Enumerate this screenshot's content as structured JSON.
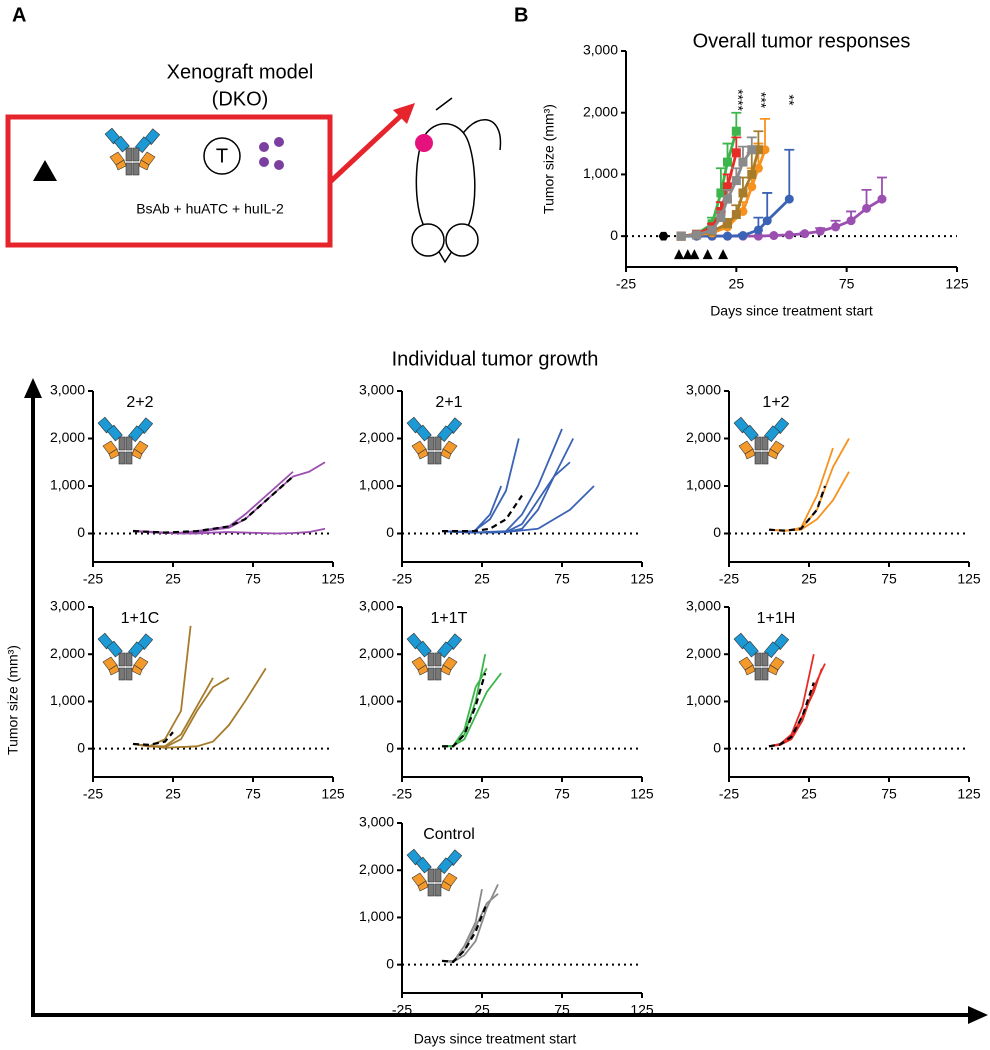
{
  "panel_labels": [
    "A",
    "B"
  ],
  "panel_a": {
    "title": "Xenograft model",
    "subtitle": "(DKO)",
    "cell_label": "T",
    "treatment": "BsAb + huATC + huIL-2"
  },
  "individual": {
    "title": "Individual tumor growth",
    "ylabel": "Tumor size (mm³)",
    "xlabel": "Days since treatment start"
  },
  "chart_data": [
    {
      "type": "line",
      "title": "Overall tumor responses",
      "xlabel": "Days since treatment start",
      "ylabel": "Tumor size (mm³)",
      "xlim": [
        -25,
        125
      ],
      "xticks": [
        -25,
        25,
        75,
        125
      ],
      "ylim": [
        -500,
        3000
      ],
      "yticks": [
        0,
        {
          "value": 1000,
          "label": "1,000"
        },
        {
          "value": 2000,
          "label": "2,000"
        },
        {
          "value": 3000,
          "label": "3,000"
        }
      ],
      "annotations": [
        "****",
        "***",
        "**"
      ],
      "treatment_days": [
        -1,
        3,
        6,
        12,
        19
      ],
      "implant_day": -8,
      "series": [
        {
          "color": "#9b4fb0",
          "marker": "circle",
          "x": [
            0,
            7,
            14,
            21,
            28,
            35,
            42,
            49,
            56,
            63,
            70,
            77,
            84,
            91
          ],
          "values": [
            0,
            0,
            0,
            0,
            0,
            0,
            10,
            20,
            40,
            80,
            150,
            250,
            450,
            600
          ],
          "errors": [
            0,
            0,
            0,
            0,
            0,
            0,
            0,
            0,
            20,
            50,
            100,
            150,
            300,
            350
          ]
        },
        {
          "color": "#3a62b5",
          "marker": "circle",
          "x": [
            0,
            7,
            14,
            21,
            28,
            35,
            39,
            49
          ],
          "values": [
            0,
            0,
            0,
            0,
            10,
            100,
            250,
            600
          ],
          "errors": [
            0,
            0,
            0,
            0,
            20,
            200,
            450,
            800
          ]
        },
        {
          "color": "#f7921e",
          "marker": "circle",
          "x": [
            0,
            7,
            14,
            21,
            28,
            32,
            35,
            38
          ],
          "values": [
            0,
            20,
            50,
            150,
            400,
            800,
            1100,
            1400
          ],
          "errors": [
            0,
            0,
            20,
            50,
            150,
            300,
            400,
            500
          ]
        },
        {
          "color": "#a67c2b",
          "marker": "square",
          "x": [
            0,
            7,
            14,
            21,
            25,
            28,
            32,
            35
          ],
          "values": [
            0,
            20,
            80,
            200,
            350,
            700,
            1000,
            1400
          ],
          "errors": [
            0,
            0,
            30,
            80,
            150,
            250,
            350,
            300
          ]
        },
        {
          "color": "#3cb54a",
          "marker": "square",
          "x": [
            0,
            7,
            14,
            18,
            21,
            25
          ],
          "values": [
            0,
            30,
            200,
            700,
            1200,
            1700
          ],
          "errors": [
            0,
            20,
            100,
            400,
            300,
            300
          ]
        },
        {
          "color": "#e52d27",
          "marker": "square",
          "x": [
            0,
            7,
            14,
            18,
            21,
            25
          ],
          "values": [
            0,
            30,
            150,
            400,
            800,
            1350
          ],
          "errors": [
            0,
            10,
            50,
            150,
            200,
            250
          ]
        },
        {
          "color": "#8a8a8a",
          "marker": "square",
          "x": [
            0,
            7,
            14,
            18,
            21,
            25,
            28,
            32
          ],
          "values": [
            0,
            20,
            100,
            300,
            600,
            900,
            1200,
            1400
          ],
          "errors": [
            0,
            0,
            40,
            100,
            150,
            200,
            250,
            200
          ]
        }
      ]
    },
    {
      "type": "line",
      "title": "2+2",
      "xlim": [
        -25,
        125
      ],
      "xticks": [
        -25,
        25,
        75,
        125
      ],
      "ylim": [
        -600,
        3000
      ],
      "yticks": [
        0,
        {
          "value": 1000,
          "label": "1,000"
        },
        {
          "value": 2000,
          "label": "2,000"
        },
        {
          "value": 3000,
          "label": "3,000"
        }
      ],
      "series": [
        {
          "color": "#9b4fb0",
          "x": [
            0,
            10,
            20,
            30,
            40,
            50,
            60,
            70,
            80,
            90,
            100,
            110,
            120
          ],
          "values": [
            50,
            30,
            10,
            0,
            0,
            20,
            30,
            20,
            10,
            0,
            10,
            30,
            100
          ]
        },
        {
          "color": "#9b4fb0",
          "x": [
            0,
            10,
            20,
            30,
            40,
            50,
            60,
            70,
            80,
            90,
            100,
            110,
            120
          ],
          "values": [
            50,
            40,
            20,
            10,
            20,
            80,
            120,
            300,
            600,
            900,
            1200,
            1300,
            1500
          ]
        },
        {
          "color": "#9b4fb0",
          "x": [
            0,
            10,
            20,
            30,
            40,
            50,
            60,
            70,
            80,
            90,
            100
          ],
          "values": [
            60,
            30,
            10,
            20,
            50,
            100,
            150,
            400,
            700,
            1000,
            1300
          ]
        },
        {
          "color": "#000000",
          "dash": true,
          "x": [
            0,
            20,
            40,
            60,
            70,
            80,
            90,
            100
          ],
          "values": [
            50,
            20,
            50,
            150,
            300,
            600,
            900,
            1200
          ]
        }
      ]
    },
    {
      "type": "line",
      "title": "2+1",
      "xlim": [
        -25,
        125
      ],
      "xticks": [
        -25,
        25,
        75,
        125
      ],
      "ylim": [
        -600,
        3000
      ],
      "yticks": [
        0,
        {
          "value": 1000,
          "label": "1,000"
        },
        {
          "value": 2000,
          "label": "2,000"
        },
        {
          "value": 3000,
          "label": "3,000"
        }
      ],
      "series": [
        {
          "color": "#3a62b5",
          "x": [
            0,
            10,
            20,
            30,
            40,
            48
          ],
          "values": [
            50,
            40,
            50,
            300,
            900,
            2000
          ]
        },
        {
          "color": "#3a62b5",
          "x": [
            0,
            10,
            20,
            30,
            37
          ],
          "values": [
            50,
            30,
            40,
            400,
            1000
          ]
        },
        {
          "color": "#3a62b5",
          "x": [
            0,
            20,
            40,
            50,
            60,
            70,
            75
          ],
          "values": [
            50,
            20,
            50,
            400,
            1000,
            1800,
            2200
          ]
        },
        {
          "color": "#3a62b5",
          "x": [
            0,
            20,
            40,
            50,
            60,
            70,
            82
          ],
          "values": [
            50,
            20,
            30,
            100,
            500,
            1200,
            2000
          ]
        },
        {
          "color": "#3a62b5",
          "x": [
            0,
            20,
            40,
            50,
            60,
            70,
            80
          ],
          "values": [
            50,
            20,
            30,
            200,
            700,
            1200,
            1500
          ]
        },
        {
          "color": "#3a62b5",
          "x": [
            0,
            20,
            40,
            60,
            70,
            80,
            95
          ],
          "values": [
            50,
            20,
            30,
            100,
            300,
            500,
            1000
          ]
        },
        {
          "color": "#000000",
          "dash": true,
          "x": [
            0,
            20,
            30,
            40,
            50
          ],
          "values": [
            50,
            50,
            100,
            300,
            800
          ]
        }
      ]
    },
    {
      "type": "line",
      "title": "1+2",
      "xlim": [
        -25,
        125
      ],
      "xticks": [
        -25,
        25,
        75,
        125
      ],
      "ylim": [
        -600,
        3000
      ],
      "yticks": [
        0,
        {
          "value": 1000,
          "label": "1,000"
        },
        {
          "value": 2000,
          "label": "2,000"
        },
        {
          "value": 3000,
          "label": "3,000"
        }
      ],
      "series": [
        {
          "color": "#f7921e",
          "x": [
            0,
            10,
            20,
            30,
            40,
            50
          ],
          "values": [
            80,
            60,
            100,
            500,
            1400,
            2000
          ]
        },
        {
          "color": "#f7921e",
          "x": [
            0,
            10,
            20,
            30,
            40
          ],
          "values": [
            80,
            50,
            120,
            800,
            1800
          ]
        },
        {
          "color": "#f7921e",
          "x": [
            0,
            10,
            20,
            30,
            40,
            50
          ],
          "values": [
            80,
            60,
            80,
            300,
            700,
            1300
          ]
        },
        {
          "color": "#000000",
          "dash": true,
          "x": [
            0,
            10,
            20,
            30,
            35
          ],
          "values": [
            80,
            60,
            100,
            500,
            1000
          ]
        }
      ]
    },
    {
      "type": "line",
      "title": "1+1C",
      "xlim": [
        -25,
        125
      ],
      "xticks": [
        -25,
        25,
        75,
        125
      ],
      "ylim": [
        -600,
        3000
      ],
      "yticks": [
        0,
        {
          "value": 1000,
          "label": "1,000"
        },
        {
          "value": 2000,
          "label": "2,000"
        },
        {
          "value": 3000,
          "label": "3,000"
        }
      ],
      "series": [
        {
          "color": "#a67c2b",
          "x": [
            0,
            10,
            20,
            30,
            36
          ],
          "values": [
            100,
            50,
            200,
            800,
            2600
          ]
        },
        {
          "color": "#a67c2b",
          "x": [
            0,
            10,
            20,
            30,
            40,
            50,
            60
          ],
          "values": [
            100,
            50,
            30,
            200,
            800,
            1300,
            1500
          ]
        },
        {
          "color": "#a67c2b",
          "x": [
            0,
            10,
            20,
            30,
            40,
            50
          ],
          "values": [
            100,
            50,
            50,
            300,
            900,
            1500
          ]
        },
        {
          "color": "#a67c2b",
          "x": [
            0,
            20,
            40,
            50,
            60,
            70,
            83
          ],
          "values": [
            100,
            20,
            50,
            150,
            500,
            1000,
            1700
          ]
        },
        {
          "color": "#000000",
          "dash": true,
          "x": [
            0,
            10,
            20,
            25
          ],
          "values": [
            100,
            80,
            150,
            350
          ]
        }
      ]
    },
    {
      "type": "line",
      "title": "1+1T",
      "xlim": [
        -25,
        125
      ],
      "xticks": [
        -25,
        25,
        75,
        125
      ],
      "ylim": [
        -600,
        3000
      ],
      "yticks": [
        0,
        {
          "value": 1000,
          "label": "1,000"
        },
        {
          "value": 2000,
          "label": "2,000"
        },
        {
          "value": 3000,
          "label": "3,000"
        }
      ],
      "series": [
        {
          "color": "#3cb54a",
          "x": [
            0,
            7,
            14,
            21,
            27
          ],
          "values": [
            50,
            50,
            300,
            1000,
            2000
          ]
        },
        {
          "color": "#3cb54a",
          "x": [
            0,
            7,
            14,
            21,
            28
          ],
          "values": [
            50,
            60,
            400,
            1300,
            1700
          ]
        },
        {
          "color": "#3cb54a",
          "x": [
            0,
            7,
            14,
            21,
            28,
            37
          ],
          "values": [
            50,
            60,
            200,
            700,
            1200,
            1600
          ]
        },
        {
          "color": "#000000",
          "dash": true,
          "x": [
            0,
            7,
            14,
            21,
            27
          ],
          "values": [
            50,
            50,
            300,
            900,
            1600
          ]
        }
      ]
    },
    {
      "type": "line",
      "title": "1+1H",
      "xlim": [
        -25,
        125
      ],
      "xticks": [
        -25,
        25,
        75,
        125
      ],
      "ylim": [
        -600,
        3000
      ],
      "yticks": [
        0,
        {
          "value": 1000,
          "label": "1,000"
        },
        {
          "value": 2000,
          "label": "2,000"
        },
        {
          "value": 3000,
          "label": "3,000"
        }
      ],
      "series": [
        {
          "color": "#e52d27",
          "x": [
            0,
            7,
            14,
            21,
            28
          ],
          "values": [
            50,
            100,
            300,
            900,
            2000
          ]
        },
        {
          "color": "#e52d27",
          "x": [
            0,
            7,
            14,
            21,
            28,
            35
          ],
          "values": [
            50,
            80,
            200,
            600,
            1300,
            1800
          ]
        },
        {
          "color": "#e52d27",
          "x": [
            0,
            7,
            14,
            21,
            28,
            33
          ],
          "values": [
            50,
            100,
            250,
            700,
            1200,
            1700
          ]
        },
        {
          "color": "#000000",
          "dash": true,
          "x": [
            0,
            7,
            14,
            21,
            28
          ],
          "values": [
            50,
            90,
            250,
            700,
            1400
          ]
        }
      ]
    },
    {
      "type": "line",
      "title": "Control",
      "xlim": [
        -25,
        125
      ],
      "xticks": [
        -25,
        25,
        75,
        125
      ],
      "ylim": [
        -600,
        3000
      ],
      "yticks": [
        0,
        {
          "value": 1000,
          "label": "1,000"
        },
        {
          "value": 2000,
          "label": "2,000"
        },
        {
          "value": 3000,
          "label": "3,000"
        }
      ],
      "series": [
        {
          "color": "#8a8a8a",
          "x": [
            0,
            7,
            14,
            21,
            28,
            35
          ],
          "values": [
            80,
            60,
            200,
            500,
            1200,
            1700
          ]
        },
        {
          "color": "#8a8a8a",
          "x": [
            0,
            7,
            14,
            21,
            28,
            35
          ],
          "values": [
            80,
            80,
            300,
            800,
            1300,
            1500
          ]
        },
        {
          "color": "#8a8a8a",
          "x": [
            0,
            7,
            14,
            21,
            25
          ],
          "values": [
            80,
            50,
            400,
            900,
            1600
          ]
        },
        {
          "color": "#000000",
          "dash": true,
          "x": [
            0,
            7,
            14,
            21,
            28
          ],
          "values": [
            80,
            60,
            300,
            700,
            1300
          ]
        }
      ]
    }
  ]
}
